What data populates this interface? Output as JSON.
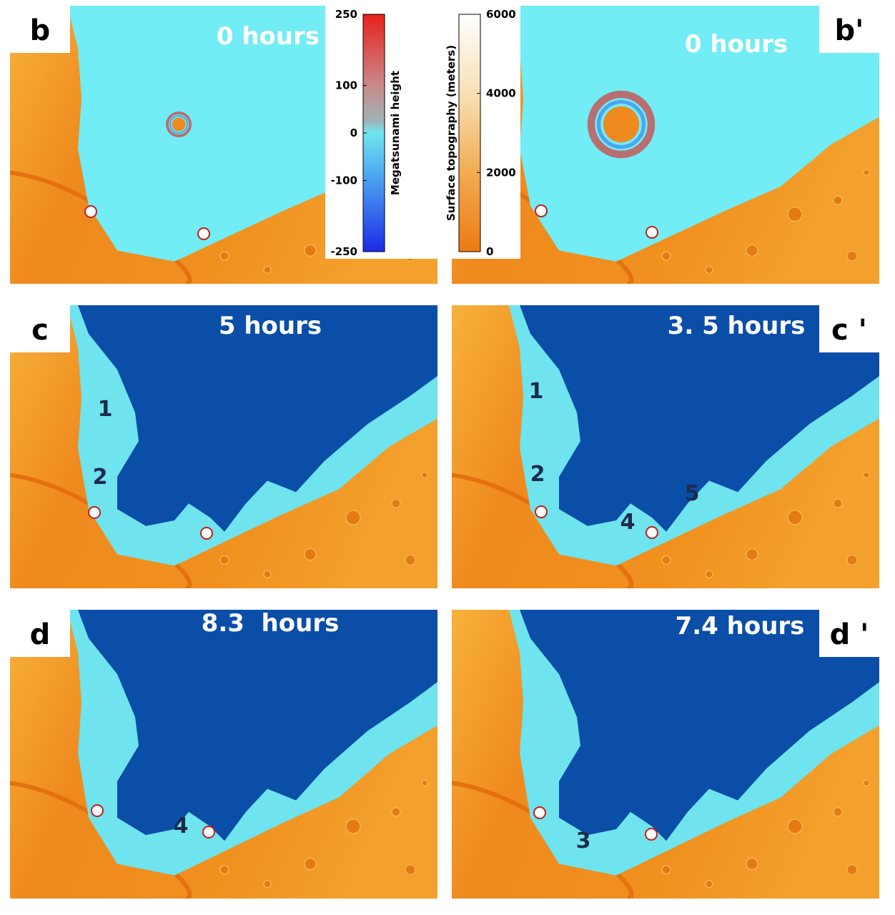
{
  "panels": [
    {
      "label": "b",
      "time": "0 hours",
      "regions": []
    },
    {
      "label": "b'",
      "time": "0 hours",
      "regions": []
    },
    {
      "label": "c",
      "time": "5 hours",
      "regions": [
        "1",
        "2"
      ]
    },
    {
      "label": "c '",
      "time": "3. 5 hours",
      "regions": [
        "1",
        "2",
        "4",
        "5"
      ]
    },
    {
      "label": "d",
      "time": "8.3  hours",
      "regions": [
        "4"
      ]
    },
    {
      "label": "d '",
      "time": "7.4 hours",
      "regions": [
        "3"
      ]
    }
  ],
  "colorbars": [
    {
      "title": "Megatsunami height",
      "ticks": [
        250,
        100,
        0,
        -100,
        -250
      ],
      "lim": [
        -250,
        250
      ]
    },
    {
      "title": "Surface topography (meters)",
      "ticks": [
        6000,
        4000,
        2000,
        0
      ],
      "lim": [
        0,
        6000
      ]
    }
  ]
}
